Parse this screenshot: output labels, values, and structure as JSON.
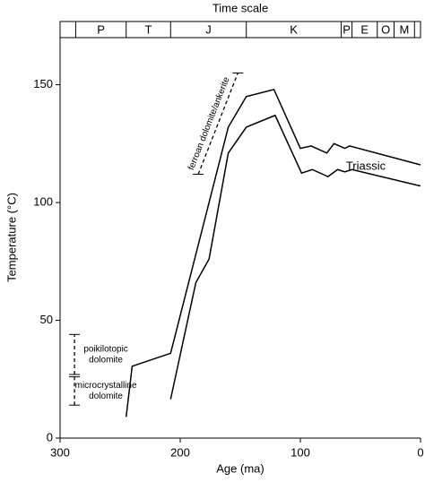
{
  "chart_data": {
    "type": "line",
    "title": "Time scale",
    "xlabel": "Age (ma)",
    "ylabel": "Temperature (°C)",
    "xlim": [
      300,
      0
    ],
    "xticks": [
      300,
      200,
      100,
      0
    ],
    "ylim": [
      0,
      170
    ],
    "yticks": [
      0,
      50,
      100,
      150
    ],
    "color": "#000000",
    "time_scale": {
      "boundaries": [
        300,
        287,
        245,
        208,
        145,
        66,
        57,
        36,
        22,
        5,
        0
      ],
      "labels": [
        null,
        "P",
        "T",
        "J",
        "K",
        "P",
        "E",
        "O",
        "M",
        null
      ]
    },
    "series": [
      {
        "x": [
          245,
          240,
          208,
          160,
          145,
          122,
          100,
          91,
          78,
          72,
          63,
          59,
          0
        ],
        "values": [
          9,
          30.5,
          36,
          132,
          145,
          148,
          123,
          124,
          121,
          125,
          123,
          124,
          116
        ]
      },
      {
        "x": [
          208,
          187,
          176,
          160,
          145,
          121,
          99,
          90,
          77,
          69,
          63,
          57,
          0
        ],
        "values": [
          16.5,
          66,
          76,
          121,
          132,
          137,
          112.5,
          114,
          111,
          114,
          113,
          114,
          107
        ]
      }
    ],
    "annotation": "Triassic",
    "ranges": [
      {
        "label": [
          "ferroan dolomite/ankerite"
        ],
        "x": [
          185,
          152
        ],
        "y": [
          112,
          155
        ]
      },
      {
        "label": [
          "poikilotopic",
          "dolomite"
        ],
        "x": [
          288,
          288
        ],
        "y": [
          27,
          44
        ]
      },
      {
        "label": [
          "microcrystalline",
          "dolomite"
        ],
        "x": [
          288,
          288
        ],
        "y": [
          14,
          26
        ]
      }
    ]
  }
}
